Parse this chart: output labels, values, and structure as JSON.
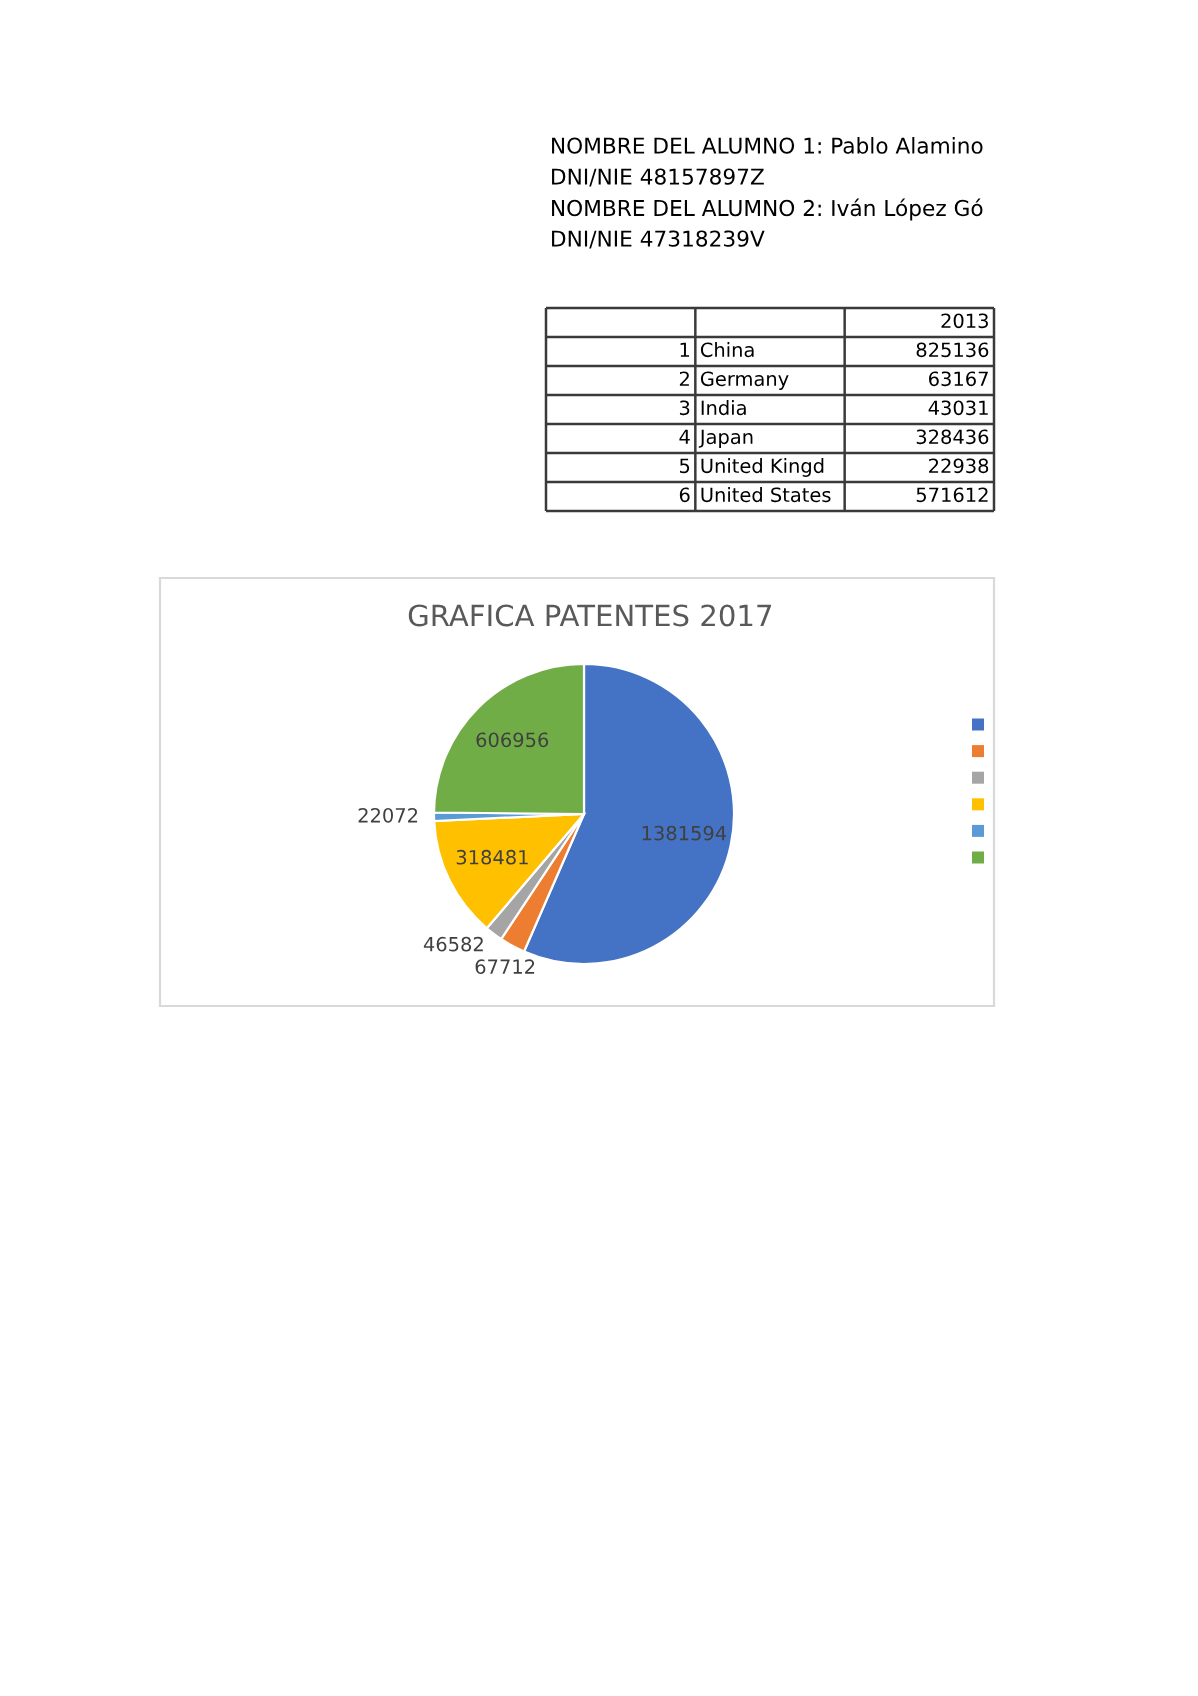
{
  "chart_data": [
    {
      "type": "other",
      "annotations": [
        "NOMBRE DEL ALUMNO 1: Pablo Alamino",
        "DNI/NIE 48157897Z",
        "NOMBRE DEL ALUMNO 2: Iván López Gó",
        "DNI/NIE 47318239V"
      ]
    },
    {
      "type": "heatmap",
      "categories": [
        "2013"
      ],
      "y_categories": [
        "1",
        "2",
        "3",
        "4",
        "5",
        "6"
      ],
      "y2_categories": [
        "China",
        "Germany",
        "India",
        "Japan",
        "United Kingd",
        "United States"
      ],
      "cells": [
        [
          825136
        ],
        [
          63167
        ],
        [
          43031
        ],
        [
          328436
        ],
        [
          22938
        ],
        [
          571612
        ]
      ],
      "data_labels": true
    },
    {
      "type": "pie",
      "title": "GRAFICA PATENTES 2017",
      "categories": [
        null,
        null,
        null,
        null,
        null,
        null
      ],
      "values": [
        1381594,
        67712,
        46582,
        318481,
        22072,
        606956
      ],
      "colors": [
        "#4472c4",
        "#ed7d31",
        "#a5a5a5",
        "#ffc000",
        "#5b9bd5",
        "#70ad47"
      ],
      "data_labels": true
    }
  ]
}
